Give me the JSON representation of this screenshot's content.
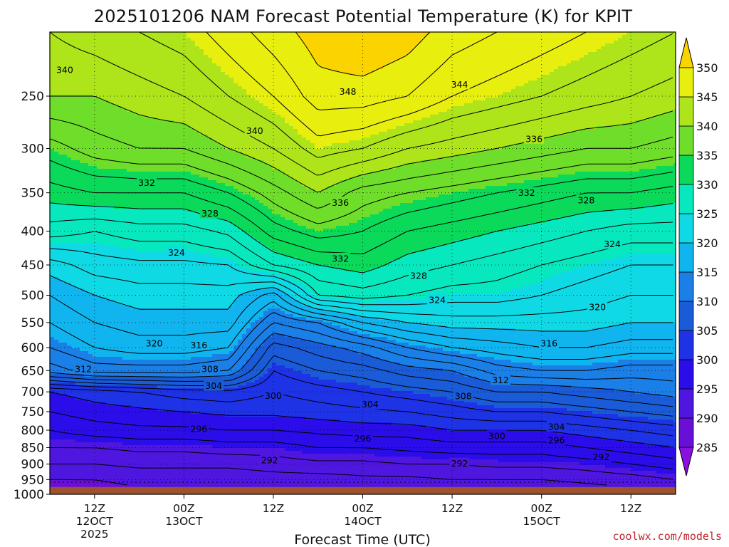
{
  "chart_data": {
    "type": "heatmap",
    "title": "2025101206 NAM Forecast Potential Temperature (K) for KPIT",
    "xlabel": "Forecast Time (UTC)",
    "ylabel": "",
    "credit": "coolwx.com/models",
    "x_ticks": [
      {
        "hour": 6,
        "lines": [
          "12Z",
          "12OCT",
          "2025"
        ]
      },
      {
        "hour": 18,
        "lines": [
          "00Z",
          "13OCT"
        ]
      },
      {
        "hour": 30,
        "lines": [
          "12Z"
        ]
      },
      {
        "hour": 42,
        "lines": [
          "00Z",
          "14OCT"
        ]
      },
      {
        "hour": 54,
        "lines": [
          "12Z"
        ]
      },
      {
        "hour": 66,
        "lines": [
          "00Z",
          "15OCT"
        ]
      },
      {
        "hour": 78,
        "lines": [
          "12Z"
        ]
      }
    ],
    "x_range_hours": [
      0,
      84
    ],
    "y_axis": "pressure (hPa), log scale, inverted",
    "y_ticks": [
      250,
      300,
      350,
      400,
      450,
      500,
      550,
      600,
      650,
      700,
      750,
      800,
      850,
      900,
      950,
      1000
    ],
    "ylim": [
      200,
      1000
    ],
    "surface_pressure_hPa": 975,
    "colorbar": {
      "levels": [
        285,
        290,
        295,
        300,
        305,
        310,
        315,
        320,
        325,
        330,
        335,
        340,
        345,
        350
      ],
      "labels": [
        "285",
        "290",
        "295",
        "300",
        "305",
        "310",
        "315",
        "320",
        "325",
        "330",
        "335",
        "340",
        "345",
        "350"
      ],
      "colors": [
        "#6a0fd8",
        "#4f16df",
        "#2a0de8",
        "#1f33e6",
        "#1a5cd8",
        "#1a80e8",
        "#10b4ee",
        "#0fd9e4",
        "#08e8bf",
        "#0ad95a",
        "#6ede2a",
        "#aee51a",
        "#e8ef0f",
        "#fdd70a"
      ],
      "under_color": "#8a10e0",
      "over_color": "#fbd400"
    },
    "contour_interval_K": 2,
    "profiles": {
      "hours": [
        0,
        6,
        12,
        18,
        24,
        30,
        36,
        42,
        48,
        54,
        60,
        66,
        72,
        78,
        84
      ],
      "pressure_hPa": [
        200,
        250,
        300,
        350,
        400,
        450,
        500,
        550,
        600,
        650,
        700,
        750,
        800,
        850,
        900,
        950,
        975
      ],
      "theta_K": [
        [
          342.0,
          340.0,
          335.0,
          331.0,
          327.0,
          321.0,
          318.0,
          316.0,
          314.0,
          311.0,
          300.0,
          298.0,
          296.0,
          294.0,
          292.0,
          290.0,
          289.0
        ],
        [
          343.0,
          340.0,
          337.0,
          332.0,
          326.0,
          323.0,
          320.0,
          318.0,
          316.0,
          313.0,
          301.0,
          299.0,
          297.0,
          294.0,
          292.0,
          290.0,
          289.5
        ],
        [
          344.0,
          341.0,
          338.0,
          332.0,
          327.0,
          323.5,
          321.0,
          319.0,
          317.0,
          313.0,
          302.0,
          299.5,
          297.5,
          294.5,
          292.5,
          290.5,
          290.0
        ],
        [
          345.0,
          342.0,
          338.0,
          332.0,
          327.0,
          323.5,
          321.0,
          319.0,
          317.0,
          313.0,
          303.0,
          300.0,
          297.5,
          294.5,
          292.5,
          290.5,
          290.0
        ],
        [
          347.0,
          344.0,
          340.0,
          334.0,
          328.5,
          324.0,
          321.0,
          319.0,
          316.0,
          312.0,
          303.5,
          300.5,
          298.0,
          295.0,
          292.5,
          290.5,
          290.0
        ],
        [
          349.0,
          346.0,
          342.0,
          337.0,
          333.0,
          328.0,
          317.0,
          312.0,
          307.0,
          304.0,
          302.0,
          300.5,
          298.0,
          295.0,
          293.0,
          291.0,
          290.0
        ],
        [
          351.0,
          349.0,
          345.0,
          340.0,
          335.0,
          330.0,
          326.0,
          314.0,
          309.0,
          306.0,
          303.0,
          301.0,
          298.5,
          296.0,
          293.5,
          291.0,
          290.0
        ],
        [
          352.0,
          349.0,
          344.0,
          337.0,
          334.0,
          331.0,
          327.0,
          318.0,
          311.0,
          307.0,
          304.0,
          301.5,
          299.0,
          296.0,
          293.5,
          291.5,
          290.5
        ],
        [
          351.0,
          348.0,
          342.0,
          336.0,
          332.0,
          329.0,
          326.0,
          320.0,
          314.0,
          309.0,
          305.0,
          302.0,
          299.0,
          296.5,
          294.0,
          291.5,
          290.5
        ],
        [
          349.0,
          346.0,
          341.0,
          335.0,
          331.0,
          328.0,
          325.0,
          321.0,
          316.0,
          310.0,
          306.0,
          303.0,
          300.0,
          297.0,
          294.0,
          292.0,
          291.0
        ],
        [
          348.0,
          345.0,
          340.0,
          334.0,
          330.0,
          327.0,
          325.0,
          321.0,
          317.0,
          313.0,
          308.0,
          304.0,
          300.0,
          297.0,
          294.5,
          292.0,
          291.0
        ],
        [
          347.0,
          344.0,
          339.0,
          333.0,
          329.0,
          326.0,
          324.0,
          321.0,
          318.0,
          314.0,
          308.0,
          304.0,
          300.0,
          297.0,
          294.5,
          292.0,
          291.0
        ],
        [
          346.0,
          343.0,
          338.0,
          332.0,
          328.0,
          325.0,
          323.0,
          321.0,
          318.0,
          314.0,
          309.0,
          305.0,
          301.0,
          298.0,
          295.0,
          292.5,
          291.5
        ],
        [
          345.0,
          342.0,
          338.0,
          332.0,
          327.0,
          324.0,
          322.0,
          320.0,
          317.0,
          313.0,
          310.0,
          306.0,
          302.0,
          299.0,
          296.0,
          293.0,
          292.0
        ],
        [
          344.0,
          341.0,
          337.0,
          331.0,
          327.0,
          324.0,
          322.0,
          320.0,
          317.0,
          313.0,
          311.0,
          307.0,
          303.0,
          300.0,
          297.0,
          294.0,
          292.5
        ]
      ]
    },
    "contour_labels": [
      {
        "text": "340",
        "hour": 2,
        "p": 228
      },
      {
        "text": "340",
        "hour": 27.5,
        "p": 282
      },
      {
        "text": "348",
        "hour": 40,
        "p": 246
      },
      {
        "text": "344",
        "hour": 55,
        "p": 240
      },
      {
        "text": "336",
        "hour": 65,
        "p": 290
      },
      {
        "text": "336",
        "hour": 39,
        "p": 362
      },
      {
        "text": "332",
        "hour": 13,
        "p": 338
      },
      {
        "text": "328",
        "hour": 21.5,
        "p": 376
      },
      {
        "text": "324",
        "hour": 17,
        "p": 431
      },
      {
        "text": "332",
        "hour": 39,
        "p": 440
      },
      {
        "text": "332",
        "hour": 64,
        "p": 350
      },
      {
        "text": "328",
        "hour": 72,
        "p": 359
      },
      {
        "text": "324",
        "hour": 75.5,
        "p": 418
      },
      {
        "text": "328",
        "hour": 49.5,
        "p": 467
      },
      {
        "text": "324",
        "hour": 52,
        "p": 508
      },
      {
        "text": "320",
        "hour": 73.5,
        "p": 521
      },
      {
        "text": "320",
        "hour": 14,
        "p": 591
      },
      {
        "text": "316",
        "hour": 20,
        "p": 595
      },
      {
        "text": "316",
        "hour": 67,
        "p": 591
      },
      {
        "text": "312",
        "hour": 4.5,
        "p": 646
      },
      {
        "text": "308",
        "hour": 21.5,
        "p": 646
      },
      {
        "text": "304",
        "hour": 22,
        "p": 685
      },
      {
        "text": "300",
        "hour": 30,
        "p": 709
      },
      {
        "text": "304",
        "hour": 43,
        "p": 731
      },
      {
        "text": "308",
        "hour": 55.5,
        "p": 710
      },
      {
        "text": "312",
        "hour": 60.5,
        "p": 672
      },
      {
        "text": "296",
        "hour": 20,
        "p": 796
      },
      {
        "text": "296",
        "hour": 42,
        "p": 823
      },
      {
        "text": "300",
        "hour": 60,
        "p": 816
      },
      {
        "text": "304",
        "hour": 68,
        "p": 790
      },
      {
        "text": "296",
        "hour": 68,
        "p": 828
      },
      {
        "text": "292",
        "hour": 29.5,
        "p": 888
      },
      {
        "text": "292",
        "hour": 55,
        "p": 898
      },
      {
        "text": "292",
        "hour": 74,
        "p": 878
      }
    ]
  }
}
